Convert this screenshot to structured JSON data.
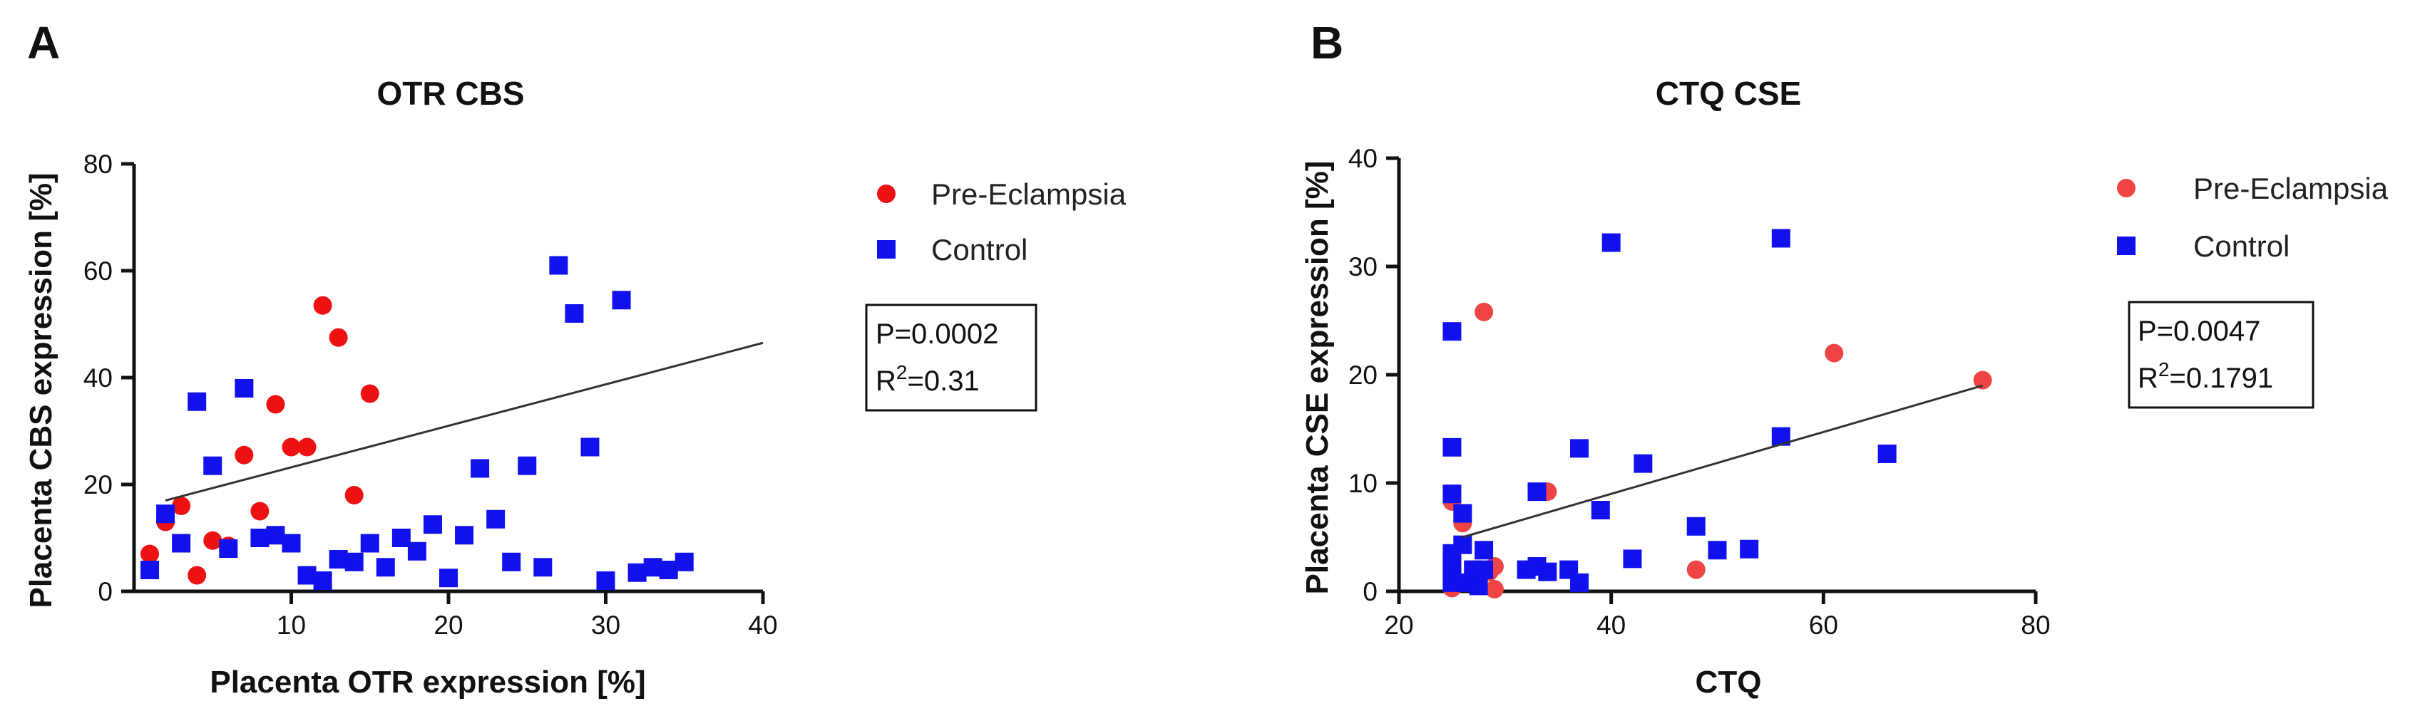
{
  "chart_data": [
    {
      "panel": "A",
      "type": "scatter",
      "title": "OTR CBS",
      "xlabel": "Placenta OTR expression [%]",
      "ylabel": "Placenta  CBS expression [%]",
      "xlim": [
        0,
        40
      ],
      "ylim": [
        0,
        80
      ],
      "xticks": [
        10,
        20,
        30,
        40
      ],
      "yticks": [
        0,
        20,
        40,
        60,
        80
      ],
      "legend_position": "right",
      "series": [
        {
          "name": "Pre-Eclampsia",
          "color": "#ee1111",
          "marker": "circle",
          "points": [
            [
              1,
              7
            ],
            [
              2,
              13
            ],
            [
              3,
              16
            ],
            [
              4,
              3
            ],
            [
              5,
              9.5
            ],
            [
              6,
              8.5
            ],
            [
              7,
              25.5
            ],
            [
              8,
              15
            ],
            [
              9,
              35
            ],
            [
              10,
              27
            ],
            [
              11,
              27
            ],
            [
              12,
              53.5
            ],
            [
              13,
              47.5
            ],
            [
              14,
              18
            ],
            [
              15,
              37
            ]
          ]
        },
        {
          "name": "Control",
          "color": "#1111ee",
          "marker": "square",
          "points": [
            [
              1,
              4
            ],
            [
              2,
              14.5
            ],
            [
              3,
              9
            ],
            [
              4,
              35.5
            ],
            [
              5,
              23.5
            ],
            [
              6,
              8
            ],
            [
              7,
              38
            ],
            [
              8,
              10
            ],
            [
              9,
              10.5
            ],
            [
              10,
              9
            ],
            [
              11,
              3
            ],
            [
              12,
              2
            ],
            [
              13,
              6
            ],
            [
              14,
              5.5
            ],
            [
              15,
              9
            ],
            [
              16,
              4.5
            ],
            [
              17,
              10
            ],
            [
              18,
              7.5
            ],
            [
              19,
              12.5
            ],
            [
              20,
              2.5
            ],
            [
              21,
              10.5
            ],
            [
              22,
              23
            ],
            [
              23,
              13.5
            ],
            [
              24,
              5.5
            ],
            [
              25,
              23.5
            ],
            [
              26,
              4.5
            ],
            [
              27,
              61
            ],
            [
              28,
              52
            ],
            [
              29,
              27
            ],
            [
              30,
              2
            ],
            [
              31,
              54.5
            ],
            [
              32,
              3.5
            ],
            [
              33,
              4.5
            ],
            [
              34,
              4
            ],
            [
              35,
              5.5
            ]
          ]
        }
      ],
      "regression": {
        "x0": 2,
        "y0": 17,
        "x1": 40,
        "y1": 46.5
      },
      "stats": {
        "p": "P=0.0002",
        "r2_prefix": "R",
        "r2_sup": "2",
        "r2_value": "=0.31"
      }
    },
    {
      "panel": "B",
      "type": "scatter",
      "title": "CTQ CSE",
      "xlabel": "CTQ",
      "ylabel": "Placenta  CSE expression [%]",
      "xlim": [
        20,
        80
      ],
      "ylim": [
        0,
        40
      ],
      "xticks": [
        20,
        40,
        60,
        80
      ],
      "yticks": [
        0,
        10,
        20,
        30,
        40
      ],
      "legend_position": "right",
      "series": [
        {
          "name": "Pre-Eclampsia",
          "color": "#ee4444",
          "marker": "circle",
          "points": [
            [
              25,
              0.3
            ],
            [
              25,
              8.3
            ],
            [
              26,
              6.3
            ],
            [
              27,
              1.5
            ],
            [
              28,
              25.8
            ],
            [
              28.5,
              1.8
            ],
            [
              29,
              2.3
            ],
            [
              29,
              0.2
            ],
            [
              34,
              9.2
            ],
            [
              48,
              2
            ],
            [
              61,
              22
            ],
            [
              75,
              19.5
            ]
          ]
        },
        {
          "name": "Control",
          "color": "#1111ee",
          "marker": "square",
          "points": [
            [
              25,
              24
            ],
            [
              25,
              13.3
            ],
            [
              25,
              9
            ],
            [
              25,
              3.5
            ],
            [
              25,
              2.5
            ],
            [
              25,
              1.5
            ],
            [
              25,
              0.8
            ],
            [
              26,
              7.2
            ],
            [
              26,
              4.3
            ],
            [
              26,
              0.8
            ],
            [
              27,
              2
            ],
            [
              27.5,
              0.5
            ],
            [
              28,
              3.8
            ],
            [
              28,
              2
            ],
            [
              32,
              2
            ],
            [
              33,
              9.2
            ],
            [
              33,
              2.3
            ],
            [
              34,
              1.8
            ],
            [
              36,
              2
            ],
            [
              37,
              13.2
            ],
            [
              37,
              0.8
            ],
            [
              39,
              7.5
            ],
            [
              40,
              32.2
            ],
            [
              42,
              3
            ],
            [
              43,
              11.8
            ],
            [
              48,
              6
            ],
            [
              50,
              3.8
            ],
            [
              53,
              3.9
            ],
            [
              56,
              32.6
            ],
            [
              56,
              14.3
            ],
            [
              66,
              12.7
            ]
          ]
        }
      ],
      "regression": {
        "x0": 26,
        "y0": 5,
        "x1": 75,
        "y1": 19
      },
      "stats": {
        "p": "P=0.0047",
        "r2_prefix": "R",
        "r2_sup": "2",
        "r2_value": "=0.1791"
      }
    }
  ]
}
